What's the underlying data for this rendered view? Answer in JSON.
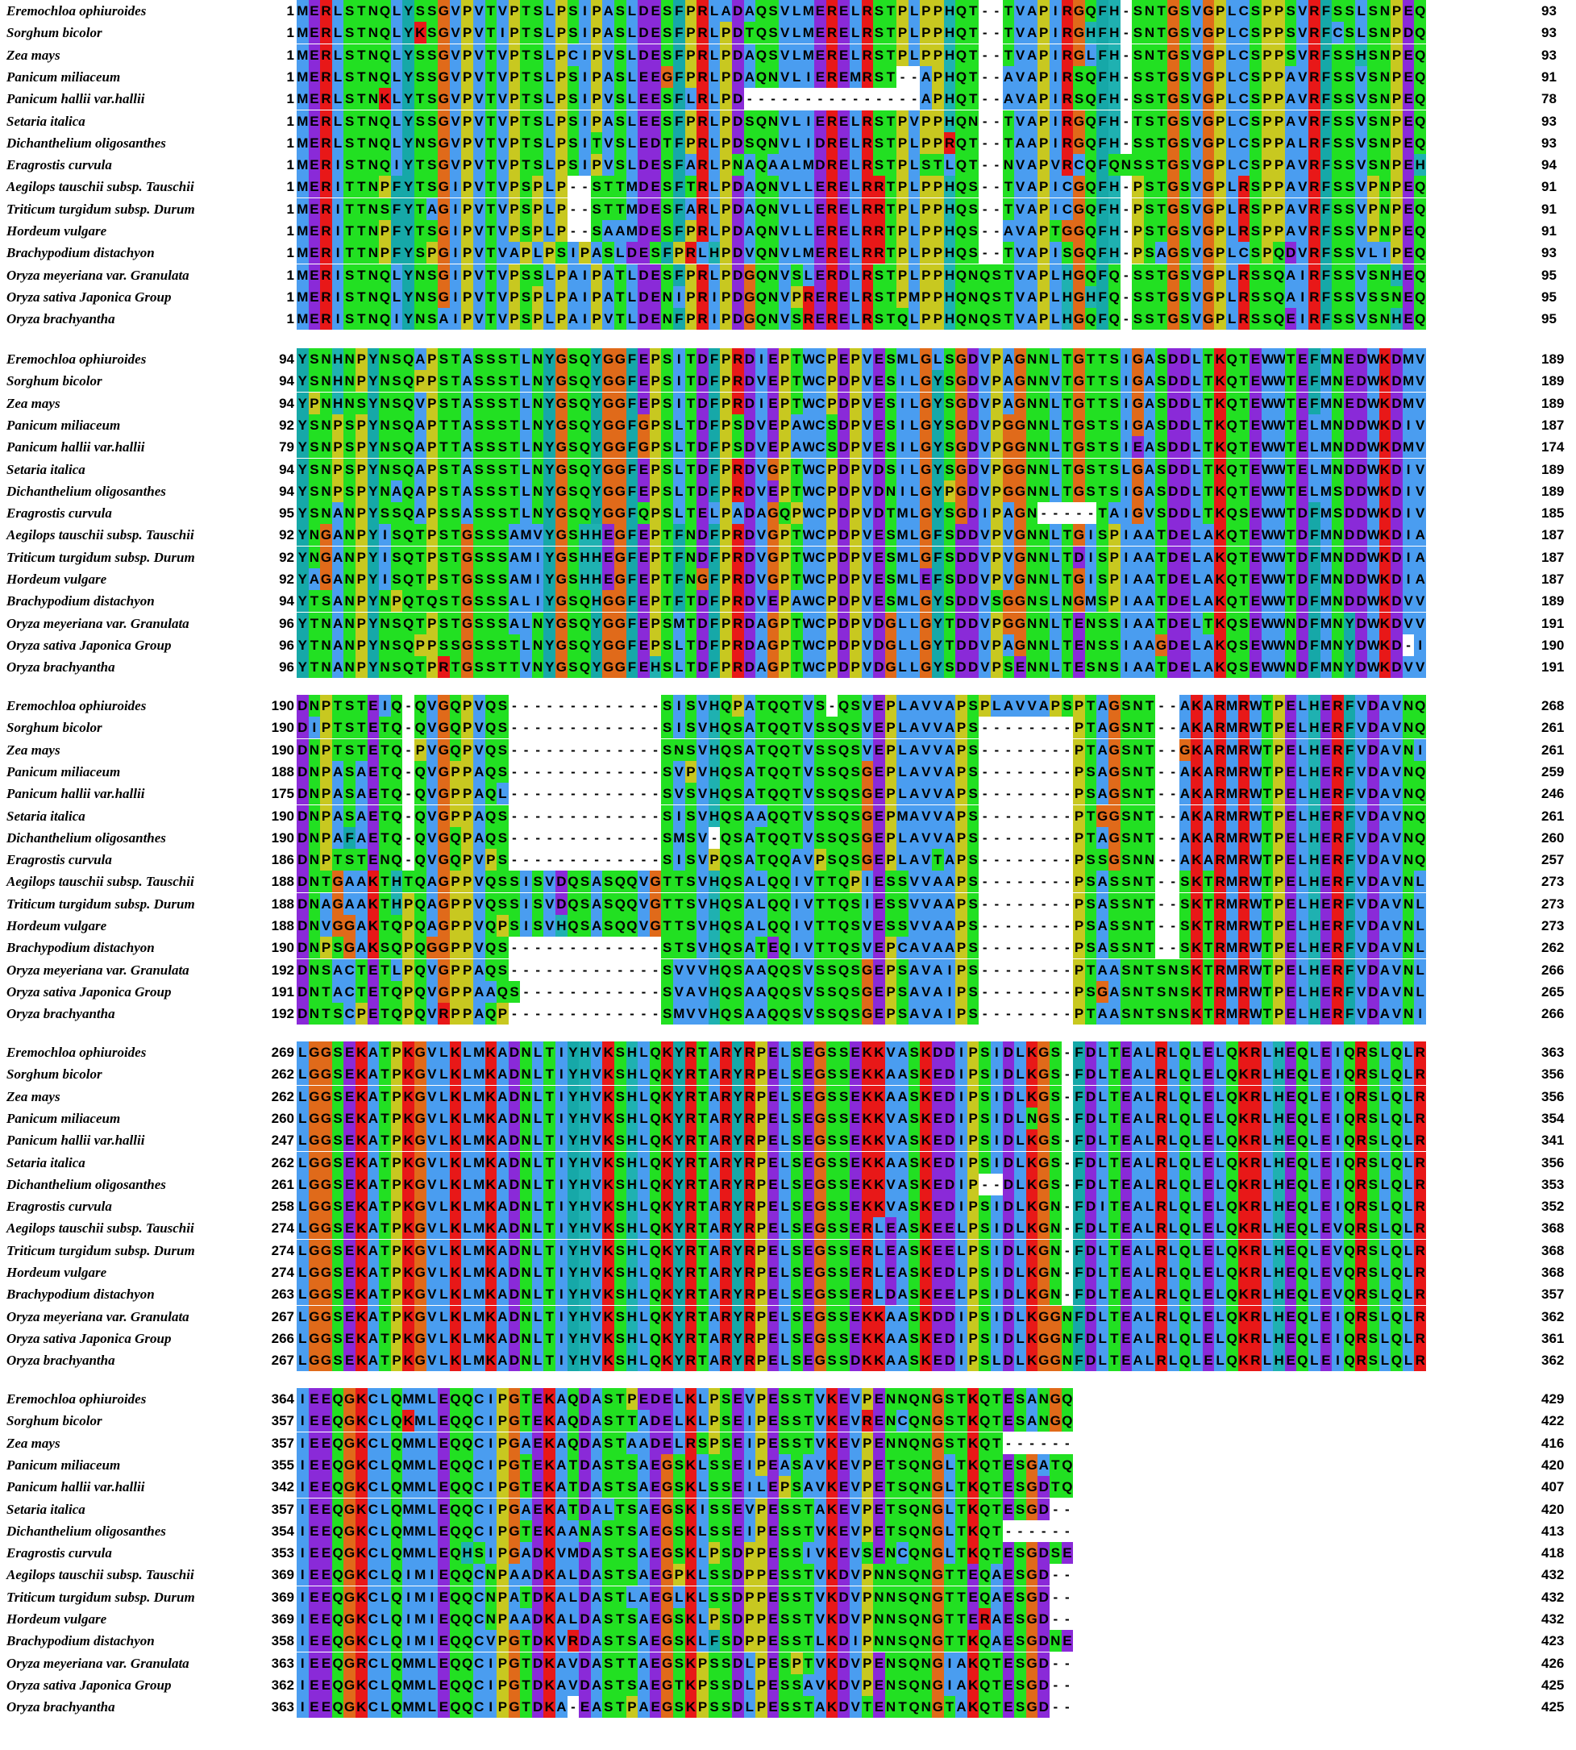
{
  "residue_colors": {
    "hydrophobic": "#4a9df0",
    "hydrophobic_residues": "AILMVWC",
    "aromatic": "#16a8a8",
    "aromatic_residues": "FY",
    "polar": "#22e022",
    "polar_residues": "STNQ",
    "positive": "#e81818",
    "positive_residues": "KR",
    "negative": "#8a2ad8",
    "negative_residues": "DE",
    "glycine": "#e06a1a",
    "proline": "#c8c820",
    "histidine": "#1fb1b1",
    "gap": "#ffffff"
  },
  "blocks": [
    {
      "rows": [
        {
          "species": "Eremochloa ophiuroides",
          "start": "1",
          "seq": "MERLSTNQLYSSGVPVTVPTSLPSIPASLDESFPRLADAQSVLMERELRSTPLPPHQT--TVAPIRGQFH-SNTGSVGPLCSPPSVRFSSLSNPEQ",
          "end": "93"
        },
        {
          "species": "Sorghum bicolor",
          "start": "1",
          "seq": "MERLSTNQLYKSGVPVTIPTSLPSIPASLDESFPRLPDTQSVLMERELRSTPLPPHQT--TVAPIRGHFH-SNTGSVGPLCSPPSVRFCSLSNPDQ",
          "end": "93"
        },
        {
          "species": "Zea mays",
          "start": "1",
          "seq": "MERLSTNQLYSSGVPVTVPTSLPCIPVSLDESFPRLPDAQSVLMERELRSTPLPPHQT--TVAPIRGLFH-SNTGSVGPLCSPPSVRFSSHSNPEQ",
          "end": "93"
        },
        {
          "species": "Panicum miliaceum",
          "start": "1",
          "seq": "MERLSTNQLYSSGVPVTVPTSLPSIPASLEEGFPRLPDAQNVLIEREMRST--APHQT--AVAPIRSQFH-SSTGSVGPLCSPPAVRFSSVSNPEQ",
          "end": "91"
        },
        {
          "species": "Panicum hallii var.hallii",
          "start": "1",
          "seq": "MERLSTNKLYTSGVPVTVPTSLPSIPVSLEESFLRLPD---------------APHQT--AVAPIRSQFH-SSTGSVGPLCSPPAVRFSSVSNPEQ",
          "end": "78"
        },
        {
          "species": "Setaria italica",
          "start": "1",
          "seq": "MERLSTNQLYSSGVPVTVPTSLPSIPASLEESFPRLPDSQNVLIERELRSTPVPPHQN--TVAPIRGQFH-TSTGSVGPLCSPPAVRFSSVSNPEQ",
          "end": "93"
        },
        {
          "species": "Dichanthelium oligosanthes",
          "start": "1",
          "seq": "MERLSTNQLYNSGVPVTVPTSLPSITVSLEDTFPRLPDSQNVLIDRELRSTPLPPRQT--TAAPIRGQFH-SSTGSVGPLCSPPALRFSSVSNPEQ",
          "end": "93"
        },
        {
          "species": "Eragrostis curvula",
          "start": "1",
          "seq": "MERISTNQIYTSGVPVTVPTSLPSIPVSLDESFARLPNAQAALMDRELRSTPLSTLQT--NVAPVRCQFQNSSTGSVGPLCSPPAVRFSSVSNPEH",
          "end": "94"
        },
        {
          "species": "Aegilops tauschii subsp. Tauschii",
          "start": "1",
          "seq": "MERITTNPFYTSGIPVTVPSPLP--STTMDESFTRLPDAQNVLLERELRRTPLPPHQS--TVAPICGQFH-PSTGSVGPLRSPPAVRFSSVPNPEQ",
          "end": "91"
        },
        {
          "species": "Triticum turgidum subsp. Durum",
          "start": "1",
          "seq": "MERITTNSFYTAGIPVTVPSPLP--STTMDESFARLPDAQNVLLERELRRTPLPPHQS--TVAPICGQFH-PSTGSVGPLRSPPAVRFSSVPNPEQ",
          "end": "91"
        },
        {
          "species": "Hordeum vulgare",
          "start": "1",
          "seq": "MERITTNPFYTSGIPVTVPSPLP--SAAMDESFPRLPDAQNVLLERELRRTPLPPHQS--AVAPTGGQFH-PSTGSVGPLRSPPAVRFSSVPNPEQ",
          "end": "91"
        },
        {
          "species": "Brachypodium distachyon",
          "start": "1",
          "seq": "MERITTNPFYSPGIPVTVAPLPSIPASLDESFPRLHPDVQNVLMERELRRTPLPPHQS--TVAPISGQFH-PSAGSVGPLCSPQDVRFSSVLIPEQ",
          "end": "93"
        },
        {
          "species": "Oryza meyeriana var. Granulata",
          "start": "1",
          "seq": "MERISTNQLYNSGIPVTVPSSLPAIPATLDESFPRLPDGQNVSLERDLRSTPLPPHQNQSTVAPLHGQFQ-SSTGSVGPLRSSQAIRFSSVSNHEQ",
          "end": "95"
        },
        {
          "species": "Oryza sativa Japonica Group",
          "start": "1",
          "seq": "MERISTNQLYNSGIPVTVPSPLPAIPATLDENIPRIPDGQNVPRERELRSTPMPPHQNQSTVAPLHGHFQ-SSTGSVGPLRSSQAIRFSSVSSNEQ",
          "end": "95"
        },
        {
          "species": "Oryza brachyantha",
          "start": "1",
          "seq": "MERISTNQIYNSAIPVTVPSPLPAIPVTLDENFPRIPDGQNVSRERELRSTQLPPHQNQSTVAPLHGQFQ-SSTGSVGPLRSSQEIRFSSVSNHEQ",
          "end": "95"
        }
      ]
    },
    {
      "rows": [
        {
          "species": "Eremochloa ophiuroides",
          "start": "94",
          "seq": "YSNHNPYNSQAPSTASSSTLNYGSQYGGFEPSITDFPRDIEPTWCPEPVESMLGLSGDVPAGNNLTGTTSIGASDDLTKQTEWWTEFMNEDWKDMV",
          "end": "189"
        },
        {
          "species": "Sorghum bicolor",
          "start": "94",
          "seq": "YSNHNPYNSQPPSTASSSTLNYGSQYGGFEPSITDFPRDVEPTWCPDPVESILGYSGDVPAGNNVTGTTSIGASDDLTKQTEWWTEFMNEDWKDMV",
          "end": "189"
        },
        {
          "species": "Zea mays",
          "start": "94",
          "seq": "YPNHNSYNSQVPSTASSSTLNYGSQYGGFEPSITDFPRDIEPTWCPDPVESILGYSGDVPAGNNLTGTTSIGASDDLTKQTEWWTEFMNEDWKDMV",
          "end": "189"
        },
        {
          "species": "Panicum miliaceum",
          "start": "92",
          "seq": "YSNPSPYNSQAPTTASSSTLNYGSQYGGFGPSLTDFPSDVEPAWCSDPVESILGYSGDVPGGNNLTGSTSIGASDDLTKQTEWWTELMNDDWKDIV",
          "end": "187"
        },
        {
          "species": "Panicum hallii var.hallii",
          "start": "79",
          "seq": "YSNPSPYNSQAPTTASSSTLNYGSQYGGFGPSLTDFPSDVEPAWCSDPVESILGYSGDVPGGNNLTGSTSIEASDDLTKQTEWWTELMNDDWKDMV",
          "end": "174"
        },
        {
          "species": "Setaria italica",
          "start": "94",
          "seq": "YSNPSPYNSQAPSTASSSTLNYGSQYGGFEPSLTDFPRDVGPTWCPDPVDSILGYSGDVPGGNNLTGSTSLGASDDLTKQTEWWTELMNDDWKDIV",
          "end": "189"
        },
        {
          "species": "Dichanthelium oligosanthes",
          "start": "94",
          "seq": "YSNPSPYNAQAPSTASSSTLNYGSQYGGFEPSLTDFPRDVEPTWCPDPVDNILGYPGDVPGGNNLTGSTSIGASDDLTKQTEWWTELMSDDWKDIV",
          "end": "189"
        },
        {
          "species": "Eragrostis curvula",
          "start": "95",
          "seq": "YSNANPYSSQAPSSASSSTLNYGSQYGGFQPSLTELPADAGQPWCPDPVDTMLGYSGDIPAGN-----TAIGVSDDLTKQSEWWTDFMSDDWKDIV",
          "end": "185"
        },
        {
          "species": "Aegilops tauschii subsp. Tauschii",
          "start": "92",
          "seq": "YNGANPYISQTPSTGSSSAMVYGSHHEGFEPTFNDFPRDVGPTWCPDPVESMLGFSDDVPVGNNLTGISPIAATDELAKQTEWWTDFMNDDWKDIA",
          "end": "187"
        },
        {
          "species": "Triticum turgidum subsp. Durum",
          "start": "92",
          "seq": "YNGANPYISQTPSTGSSSAMIYGSHHEGFEPTFNDFPRDVGPTWCPDPVESMLGFSDDVPVGNNLTDISPIAATDELAKQTEWWTDFMNDDWKDIA",
          "end": "187"
        },
        {
          "species": "Hordeum vulgare",
          "start": "92",
          "seq": "YAGANPYISQTPSTGSSSAMIYGSHHEGFEPTFNGFPRDVGPTWCPDPVESMLEFSDDVPVGNNLTGISPIAATDELAKQTEWWTDFMNDDWKDIA",
          "end": "187"
        },
        {
          "species": "Brachypodium distachyon",
          "start": "94",
          "seq": "YTSANPYNPQTQSTGSSSALIYGSQHGGFEPTFTDFPRDVEPAWCPDPVESMLGYSDDVSGGNSLNGMSPIAATDELAKQTEWWTDFMNDDWKDVV",
          "end": "189"
        },
        {
          "species": "Oryza meyeriana var. Granulata",
          "start": "96",
          "seq": "YTNANPYNSQTPSTGSSSALNYGSQYGGFEPSMTDFPRDAGPTWCPDPVDGLLGYTDDVPGGNNLTENSSIAATDELTKQSEWWNDFMNYDWKDVV",
          "end": "191"
        },
        {
          "species": "Oryza sativa Japonica Group",
          "start": "96",
          "seq": "YTNANPYNSQPPSSGSSSTLNYGSQYGGFEPSLTDFPRDAGPTWCPDPVDGLLGYTDDVPAGNNLTENSSIAAGDELAKQSEWWNDFMNYDWKD-I",
          "end": "190"
        },
        {
          "species": "Oryza brachyantha",
          "start": "96",
          "seq": "YTNANPYNSQTPRTGSSTTVNYGSQYGGFEHSLTDFPRDAGPTWCPDPVDGLLGYSDDVPSENNLTESNSIAATDELAKQSEWWNDFMNYDWKDVV",
          "end": "191"
        }
      ]
    },
    {
      "rows": [
        {
          "species": "Eremochloa ophiuroides",
          "start": "190",
          "seq": "DNPTSTEIQ-QVGQPVQS-------------SISVHQPATQQTVS-QSVEPLAVVAPSPLAVVAPSPTAGSNT--AKARMRWTPELHERFVDAVNQ",
          "end": "268"
        },
        {
          "species": "Sorghum bicolor",
          "start": "190",
          "seq": "DIPTSTETQ-QVGQPVQS-------------SISVHQSATQQTVSSQSVEPLAVVAPS--------PTAGSNT--AKARMRWTPELHERFVDAVNQ",
          "end": "261"
        },
        {
          "species": "Zea mays",
          "start": "190",
          "seq": "DNPTSTETQ-PVGQPVQS-------------SNSVHQSATQQTVSSQSVEPLAVVAPS--------PTAGSNT--GKARMRWTPELHERFVDAVNI",
          "end": "261"
        },
        {
          "species": "Panicum miliaceum",
          "start": "188",
          "seq": "DNPASAETQ-QVGPPAQS-------------SVPVHQSATQQTVSSQSGEPLAVVAPS--------PSAGSNT--AKARMRWTPELHERFVDAVNQ",
          "end": "259"
        },
        {
          "species": "Panicum hallii var.hallii",
          "start": "175",
          "seq": "DNPASAETQ-QVGPPAQL-------------SVSVHQSATQQTVSSQSGEPLAVVAPS--------PSAGSNT--AKARMRWTPELHERFVDAVNQ",
          "end": "246"
        },
        {
          "species": "Setaria italica",
          "start": "190",
          "seq": "DNPASAETQ-QVGPPAQS-------------SISVHQSAAQQTVSSQSGEPMAVVAPS--------PTGGSNT--AKARMRWTPELHERFVDAVNQ",
          "end": "261"
        },
        {
          "species": "Dichanthelium oligosanthes",
          "start": "190",
          "seq": "DNPAFAETQ-QVGQPAQS-------------SMSV-QSATQQTVSSQSGEPLAVVAPS--------PTAGSNT--AKARMRWTPELHERFVDAVNQ",
          "end": "260"
        },
        {
          "species": "Eragrostis curvula",
          "start": "186",
          "seq": "DNPTSTENQ-QVGQPVPS-------------SISVPQSATQQAVPSQSGEPLAVTAPS--------PSSGSNN--AKARMRWTPELHERFVDAVNQ",
          "end": "257"
        },
        {
          "species": "Aegilops tauschii subsp. Tauschii",
          "start": "188",
          "seq": "DNTGAAKTHTQAGPPVQSSISVDQSASQQVGTTSVHQSALQQIVTTQPIESSVVAAPS--------PSASSNT--SKTRMRWTPELHERFVDAVNL",
          "end": "273"
        },
        {
          "species": "Triticum turgidum subsp. Durum",
          "start": "188",
          "seq": "DNAGAAKTHPQAGPPVQSSISVDQSASQQVGTTSVHQSALQQIVTTQSIESSVVAAPS--------PSASSNT--SKTRMRWTPELHERFVDAVNL",
          "end": "273"
        },
        {
          "species": "Hordeum vulgare",
          "start": "188",
          "seq": "DNVGGAKTQPQAGPPVQPSISVHQSASQQVGTTSVHQSALQQIVTTQSVESSVVAAPS--------PSASSNT--SKTRMRWTPELHERFVDAVNL",
          "end": "273"
        },
        {
          "species": "Brachypodium distachyon",
          "start": "190",
          "seq": "DNPSGAKSQPQGGPPVQS-------------STSVHQSATEQIVTTQSVEPCAVAAPS--------PSASSNT--SKTRMRWTPELHERFVDAVNL",
          "end": "262"
        },
        {
          "species": "Oryza meyeriana var. Granulata",
          "start": "192",
          "seq": "DNSACTETLPQVGPPAQS-------------SVVVHQSAAQQSVSSQSGEPSAVAIPS--------PTAASNTSNSKTRMRWTPELHERFVDAVNL",
          "end": "266"
        },
        {
          "species": "Oryza sativa Japonica Group",
          "start": "191",
          "seq": "DNTACTETQPQVGPPAAQS------------SVAVHQSAAQQSVSSQSGEPSAVAIPS--------PSGASNTSNSKTRMRWTPELHERFVDAVNL",
          "end": "265"
        },
        {
          "species": "Oryza brachyantha",
          "start": "192",
          "seq": "DNTSCPETQPQVRPPAQP-------------SMVVHQSAAQQSVSSQSGEPSAVAIPS--------PTAASNTSNSKTRMRWTPELHERFVDAVNI",
          "end": "266"
        }
      ]
    },
    {
      "rows": [
        {
          "species": "Eremochloa ophiuroides",
          "start": "269",
          "seq": "LGGSEKATPKGVLKLMKADNLTIYHVKSHLQKYRTARYRPELSEGSSEKKVASKDDIPSIDLKGS-FDLTEALRLQLELQKRLHEQLEIQRSLQLR",
          "end": "363"
        },
        {
          "species": "Sorghum bicolor",
          "start": "262",
          "seq": "LGGSEKATPKGVLKLMKADNLTIYHVKSHLQKYRTARYRPELSEGSSEKKAASKEDIPSIDLKGS-FDLTEALRLQLELQKRLHEQLEIQRSLQLR",
          "end": "356"
        },
        {
          "species": "Zea mays",
          "start": "262",
          "seq": "LGGSEKATPKGVLKLMKADNLTIYHVKSHLQKYRTARYRPELSEGSSEKKAASKEDIPSIDLKGS-FDLTEALRLQLELQKRLHEQLEIQRSLQLR",
          "end": "356"
        },
        {
          "species": "Panicum miliaceum",
          "start": "260",
          "seq": "LGGSEKATPKGVLKLMKADNLTIYHVKSHLQKYRTARYRPELSEGSSEKKVASKEDIPSIDLNGS-FDLTEALRLQLELQKRLHEQLEIQRSLQLR",
          "end": "354"
        },
        {
          "species": "Panicum hallii var.hallii",
          "start": "247",
          "seq": "LGGSEKATPKGVLKLMKADNLTIYHVKSHLQKYRTARYRPELSEGSSEKKVASKEDIPSIDLKGS-FDLTEALRLQLELQKRLHEQLEIQRSLQLR",
          "end": "341"
        },
        {
          "species": "Setaria italica",
          "start": "262",
          "seq": "LGGSEKATPKGVLKLMKADNLTIYHVKSHLQKYRTARYRPELSEGSSEKKAASKEDIPSIDLKGS-FDLTEALRLQLELQKRLHEQLEIQRSLQLR",
          "end": "356"
        },
        {
          "species": "Dichanthelium oligosanthes",
          "start": "261",
          "seq": "LGGSEKATPKGVLKLMKADNLTIYHVKSHLQKYRTARYRPELSEGSSEKKVASKEDIP--DLKGS-FDLTEALRLQLELQKRLHEQLEIQRSLQLR",
          "end": "353"
        },
        {
          "species": "Eragrostis curvula",
          "start": "258",
          "seq": "LGGSEKATPKGVLKLMKADNLTIYHVKSHLQKYRTARYRPELSEGSSEKKVASKEDIPSIDLKGN-FDITEALRLQLELQKRLHEQLEIQRSLQLR",
          "end": "352"
        },
        {
          "species": "Aegilops tauschii subsp. Tauschii",
          "start": "274",
          "seq": "LGGSEKATPKGVLKLMKADNLTIYHVKSHLQKYRTARYRPELSEGSSERLEASKEELPSIDLKGN-FDLTEALRLQLELQKRLHEQLEVQRSLQLR",
          "end": "368"
        },
        {
          "species": "Triticum turgidum subsp. Durum",
          "start": "274",
          "seq": "LGGSEKATPKGVLKLMKADNLTIYHVKSHLQKYRTARYRPELSEGSSERLEASKEELPSIDLKGN-FDLTEALRLQLELQKRLHEQLEVQRSLQLR",
          "end": "368"
        },
        {
          "species": "Hordeum vulgare",
          "start": "274",
          "seq": "LGGSEKATPKGVLKLMKADNLTIYHVKSHLQKYRTARYRPELSEGSSERLEASKEDLPSIDLKGN-FDLTEALRLQLELQKRLHEQLEVQRSLQLR",
          "end": "368"
        },
        {
          "species": "Brachypodium distachyon",
          "start": "263",
          "seq": "LGGSEKATPKGVLKLMKADNLTIYHVKSHLQKYRTARYRPELSEGSSERLDASKEELPSIDLKGN-FDLTEALRLQLELQKRLHEQLEVQRSLQLR",
          "end": "357"
        },
        {
          "species": "Oryza meyeriana var. Granulata",
          "start": "267",
          "seq": "LGGSEKATPKGVLKLMKADNLTIYHVKSHLQKYRTARYRPELSEGSSEKKAASKDDIPSIDLKGGNFDLTEALRLQLELQKRLHEQLEIQRSLQLR",
          "end": "362"
        },
        {
          "species": "Oryza sativa Japonica Group",
          "start": "266",
          "seq": "LGGSEKATPKGVLKLMKADNLTIYHVKSHLQKYRTARYRPELSEGSSEKKAASKEDIPSIDLKGGNFDLTEALRLQLELQKRLHEQLEIQRSLQLR",
          "end": "361"
        },
        {
          "species": "Oryza brachyantha",
          "start": "267",
          "seq": "LGGSEKATPKGVLKLMKADNLTIYHVKSHLQKYRTARYRPELSEGSSDKKAASKEDIPSLDLKGGNFDLTEALRLQLELQKRLHEQLEIQRSLQLR",
          "end": "362"
        }
      ]
    },
    {
      "rows": [
        {
          "species": "Eremochloa ophiuroides",
          "start": "364",
          "seq": "IEEQGKCLQMMLEQQCIPGTEKAQDASTPEDELKLPSEVPESSTVKEVPENNQNGSTKQTESANGQ",
          "end": "429"
        },
        {
          "species": "Sorghum bicolor",
          "start": "357",
          "seq": "IEEQGKCLQKMLEQQCIPGTEKAQDASTTADELKLPSEIPESSTVKEVRENCQNGSTKQTESANGQ",
          "end": "422"
        },
        {
          "species": "Zea mays",
          "start": "357",
          "seq": "IEEQGKCLQMMLEQQCIPGAEKAQDASTAADELRSPSEIPESSTVKEVPENNQNGSTKQT------",
          "end": "416"
        },
        {
          "species": "Panicum miliaceum",
          "start": "355",
          "seq": "IEEQGKCLQMMLEQQCIPGTEKATDASTSAEGSKLSSEIPEASAVKEVPETSQNGLTKQTESGATQ",
          "end": "420"
        },
        {
          "species": "Panicum hallii var.hallii",
          "start": "342",
          "seq": "IEEQGKCLQMMLEQQCIPGTEKATDASTSAEGSKLSSEILEPSAVKEVPETSQNGLTKQTESGDTQ",
          "end": "407"
        },
        {
          "species": "Setaria italica",
          "start": "357",
          "seq": "IEEQGKCLQMMLEQQCIPGAEKATDALTSAEGSKISSEVPESSTAKEVPETSQNGLTKQTESGD--",
          "end": "420"
        },
        {
          "species": "Dichanthelium oligosanthes",
          "start": "354",
          "seq": "IEEQGKCLQMMLEQQCIPGTEKAANASTSAEGSKLSSEIPESSTVKEVPETSQNGLTKQT------",
          "end": "413"
        },
        {
          "species": "Eragrostis curvula",
          "start": "353",
          "seq": "IEEQGKCLQMMLEQHSIPGADKVMDASTSAEGSKLPSDPPESSIVKEVSENCQNGLTKQTESGDSE",
          "end": "418"
        },
        {
          "species": "Aegilops tauschii subsp. Tauschii",
          "start": "369",
          "seq": "IEEQGKCLQIMIEQQCNPAADKALDASTSAEGPKLSSDPPESSTVKDVPNNSQNGTTEQAESGD--",
          "end": "432"
        },
        {
          "species": "Triticum turgidum subsp. Durum",
          "start": "369",
          "seq": "IEEQGKCLQIMIEQQCNPATDKALDASTLAEGLKLSSDPPESSTVKDVPNNSQNGTTEQAESGD--",
          "end": "432"
        },
        {
          "species": "Hordeum vulgare",
          "start": "369",
          "seq": "IEEQGKCLQIMIEQQCNPAADKALDASTSAEGSKLPSDPPESSTVKDVPNNSQNGTTERAESGD--",
          "end": "432"
        },
        {
          "species": "Brachypodium distachyon",
          "start": "358",
          "seq": "IEEQGKCLQIMIEQQCVPGTDKVRDASTSAEGSKLFSDPPESSTLKDIPNNSQNGTTKQAESGDNE",
          "end": "423"
        },
        {
          "species": "Oryza meyeriana var. Granulata",
          "start": "363",
          "seq": "IEEQGRCLQMMLEQQCIPGTDKAVDASTTAEGSKPSSDLPESPTVKDVPENSQNGIAKQTESGD--",
          "end": "426"
        },
        {
          "species": "Oryza sativa Japonica Group",
          "start": "362",
          "seq": "IEEQGKCLQMMLEQQCIPGTDKAVDASTSAEGTKPSSDLPESSAVKDVPENSQNGIAKQTESGD--",
          "end": "425"
        },
        {
          "species": "Oryza brachyantha",
          "start": "363",
          "seq": "IEEQGKCLQMMLEQQCIPGTDKA-EASTPAEGSKPSSDLPESSTAKDVTENTQNGTAKQTESGD--",
          "end": "425"
        }
      ]
    }
  ]
}
